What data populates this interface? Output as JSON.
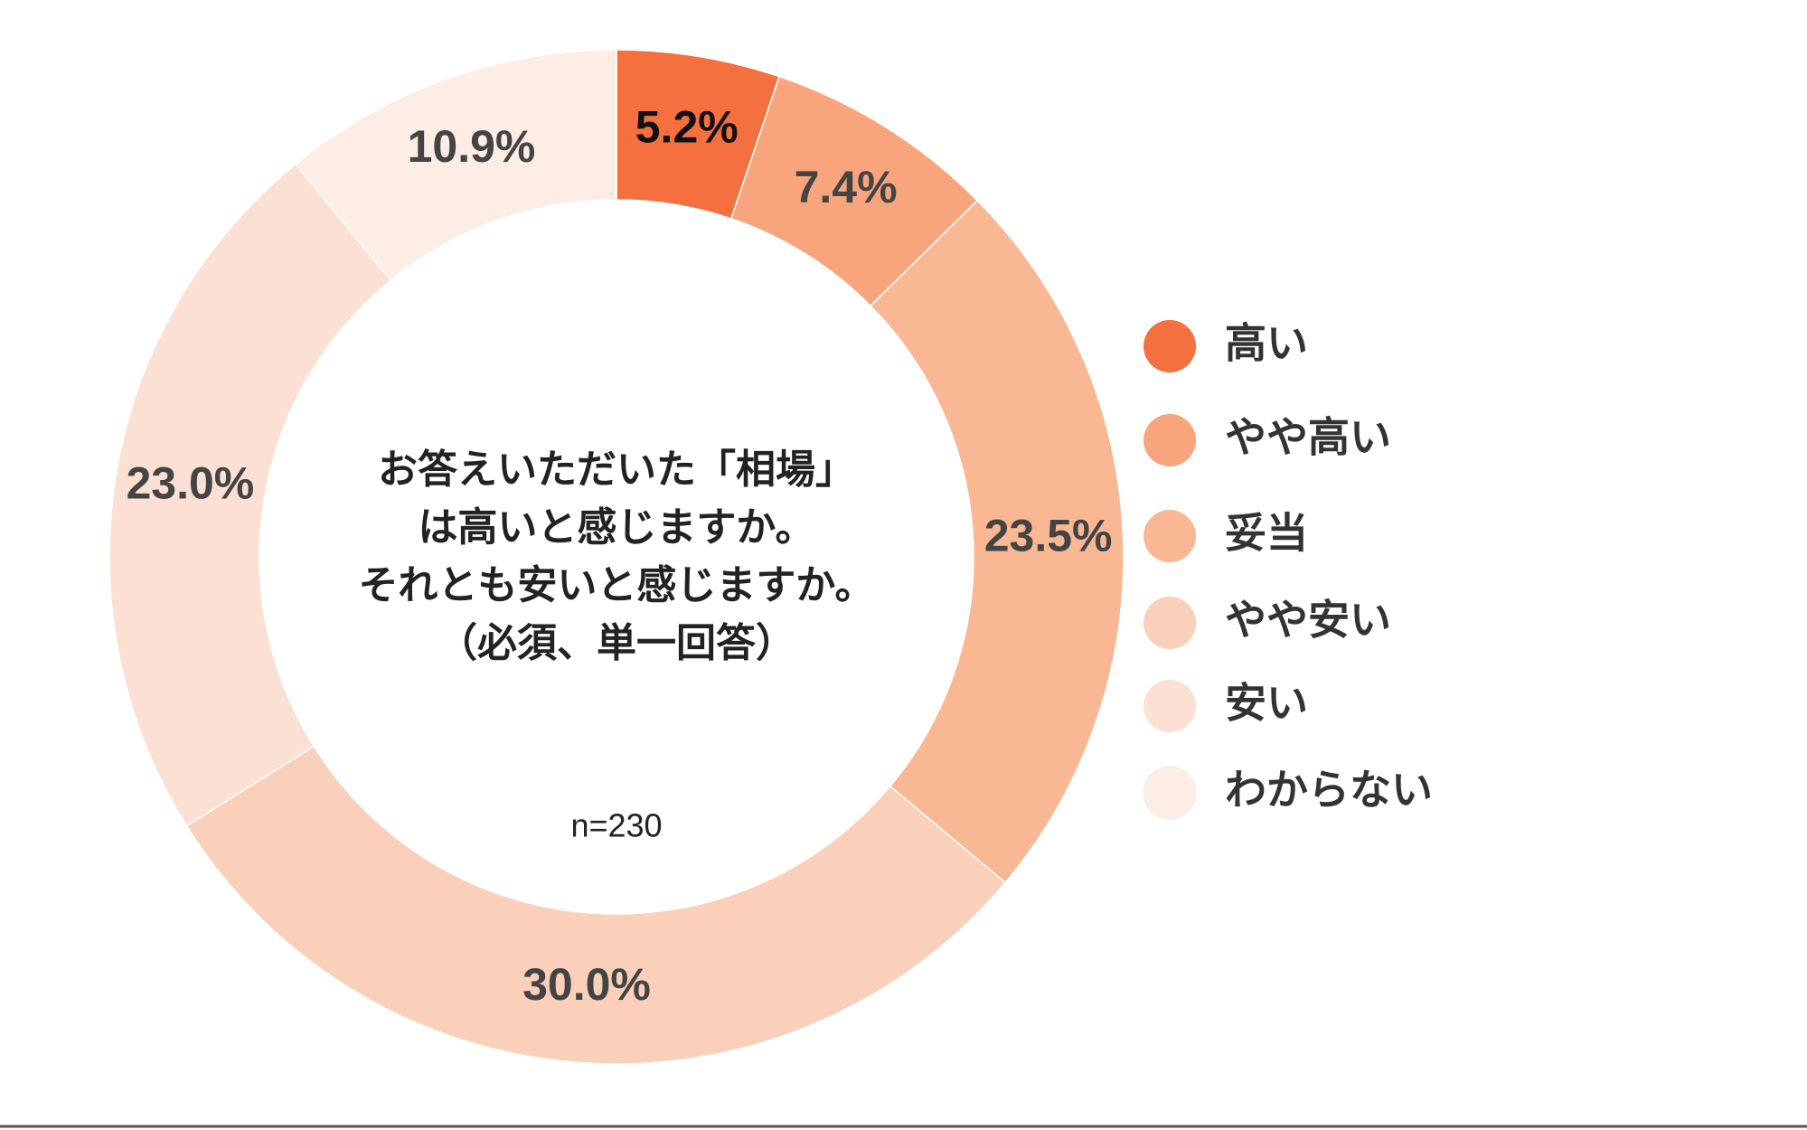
{
  "chart_data": {
    "type": "donut",
    "title_lines": [
      "お答えいただいた「相場」",
      "は高いと感じますか。",
      "それとも安いと感じますか。",
      "（必須、単一回答）"
    ],
    "note": "n=230",
    "categories": [
      "高い",
      "やや高い",
      "妥当",
      "やや安い",
      "安い",
      "わからない"
    ],
    "values": [
      5.2,
      7.4,
      23.5,
      30.0,
      23.0,
      10.9
    ],
    "value_labels": [
      "5.2%",
      "7.4%",
      "23.5%",
      "30.0%",
      "23.0%",
      "10.9%"
    ],
    "colors": [
      "#f4703f",
      "#f8a57d",
      "#f9b893",
      "#fbd0ba",
      "#fce0d3",
      "#fdede5"
    ],
    "legend": "right"
  }
}
